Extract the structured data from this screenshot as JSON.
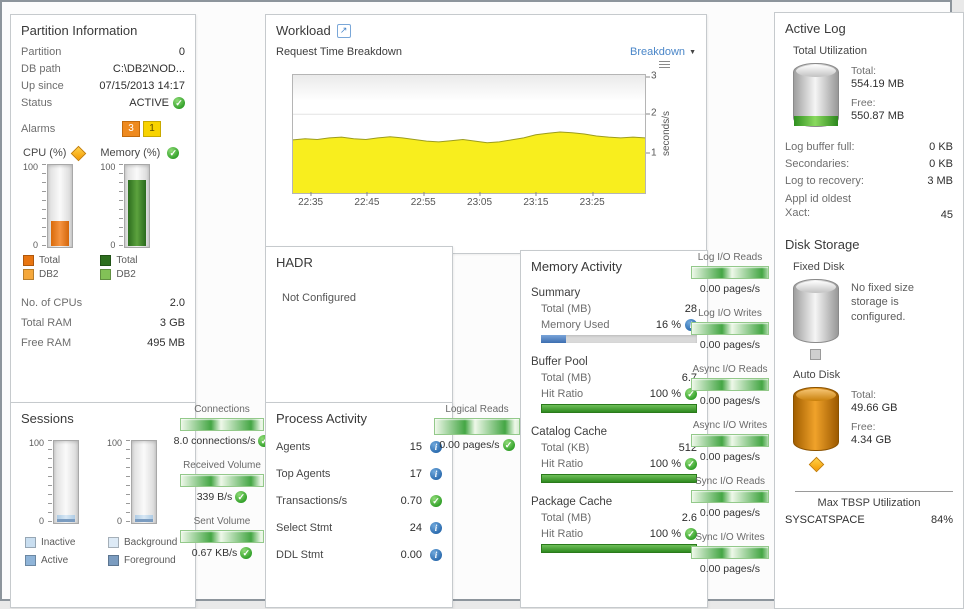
{
  "icons": {
    "ok": "✓",
    "info": "i",
    "caret_down": "▼",
    "external_link": "↗"
  },
  "colors": {
    "link": "#4a86c8",
    "ok_green": "#3aa52f",
    "warn_orange": "#ee8a1f",
    "caution_yellow": "#f8d300",
    "cpu_total": "#e87511",
    "cpu_db2": "#f5a83b",
    "mem_total": "#2d6e1e",
    "mem_db2": "#82c157",
    "sess_inactive": "#c9def0",
    "sess_active": "#8fb4d8",
    "sess_background": "#ddeaf6",
    "sess_foreground": "#7b9cc0",
    "info_blue": "#3273b5",
    "chart_fill": "#f8ee1e"
  },
  "partition": {
    "title": "Partition Information",
    "rows": [
      {
        "label": "Partition",
        "value": "0"
      },
      {
        "label": "DB path",
        "value": "C:\\DB2\\NOD..."
      },
      {
        "label": "Up since",
        "value": "07/15/2013 14:17"
      },
      {
        "label": "Status",
        "value": "ACTIVE"
      }
    ],
    "alarms_label": "Alarms",
    "alarms": [
      {
        "count": "3",
        "severity": "warning"
      },
      {
        "count": "1",
        "severity": "caution"
      }
    ],
    "cpu": {
      "label": "CPU (%)",
      "max": "100",
      "min": "0",
      "fill": "30%",
      "legend": [
        "Total",
        "DB2"
      ]
    },
    "memory": {
      "label": "Memory (%)",
      "max": "100",
      "min": "0",
      "fill": "80%",
      "legend": [
        "Total",
        "DB2"
      ]
    },
    "stats": [
      {
        "label": "No. of CPUs",
        "value": "2.0"
      },
      {
        "label": "Total RAM",
        "value": "3 GB"
      },
      {
        "label": "Free RAM",
        "value": "495 MB"
      }
    ]
  },
  "sessions": {
    "title": "Sessions",
    "gauges": [
      {
        "max": "100",
        "min": "0",
        "fill": "9%"
      },
      {
        "max": "100",
        "min": "0",
        "fill": "8%"
      }
    ],
    "legend": [
      [
        "Inactive",
        "Active"
      ],
      [
        "Background",
        "Foreground"
      ]
    ]
  },
  "flows": {
    "connections": {
      "label": "Connections",
      "value": "8.0 connections/s"
    },
    "received": {
      "label": "Received Volume",
      "value": "339 B/s"
    },
    "sent": {
      "label": "Sent Volume",
      "value": "0.67 KB/s"
    },
    "logical_reads": {
      "label": "Logical Reads",
      "value": "0.00 pages/s"
    }
  },
  "io_flows": [
    {
      "label": "Log I/O Reads",
      "value": "0.00 pages/s"
    },
    {
      "label": "Log I/O Writes",
      "value": "0.00 pages/s"
    },
    {
      "label": "Async I/O Reads",
      "value": "0.00 pages/s"
    },
    {
      "label": "Async I/O Writes",
      "value": "0.00 pages/s"
    },
    {
      "label": "Sync I/O Reads",
      "value": "0.00 pages/s"
    },
    {
      "label": "Sync I/O Writes",
      "value": "0.00 pages/s"
    }
  ],
  "workload": {
    "title": "Workload",
    "subtitle": "Request Time Breakdown",
    "breakdown_label": "Breakdown"
  },
  "chart_data": {
    "type": "area",
    "title": "Request Time Breakdown",
    "ylabel": "seconds/s",
    "ylim": [
      0,
      3
    ],
    "y_ticks": [
      "3",
      "2",
      "1"
    ],
    "x_ticks": [
      "22:35",
      "22:45",
      "22:55",
      "23:05",
      "23:15",
      "23:25"
    ],
    "fill_color": "#f8ee1e",
    "line_color": "#9c9c1e",
    "legend_position": "none",
    "grid": true,
    "series": [
      {
        "name": "Request Time",
        "values": [
          1.35,
          1.38,
          1.36,
          1.4,
          1.42,
          1.38,
          1.36,
          1.4,
          1.43,
          1.4,
          1.36,
          1.32,
          1.3,
          1.33,
          1.36,
          1.32,
          1.28,
          1.3,
          1.35,
          1.4,
          1.48,
          1.52,
          1.55,
          1.53,
          1.5,
          1.45,
          1.42,
          1.4,
          1.42,
          1.4
        ]
      }
    ]
  },
  "hadr": {
    "title": "HADR",
    "message": "Not Configured"
  },
  "process": {
    "title": "Process Activity",
    "rows": [
      {
        "label": "Agents",
        "value": "15",
        "icon": "info"
      },
      {
        "label": "Top Agents",
        "value": "17",
        "icon": "info"
      },
      {
        "label": "Transactions/s",
        "value": "0.70",
        "icon": "ok"
      },
      {
        "label": "Select Stmt",
        "value": "24",
        "icon": "info"
      },
      {
        "label": "DDL Stmt",
        "value": "0.00",
        "icon": "info"
      }
    ]
  },
  "memory_activity": {
    "title": "Memory Activity",
    "summary_title": "Summary",
    "summary_rows": [
      {
        "label": "Total (MB)",
        "value": "28"
      },
      {
        "label": "Memory Used",
        "value": "16 %"
      }
    ],
    "memory_used_pct": "16%",
    "sections": [
      {
        "title": "Buffer Pool",
        "rows": [
          {
            "label": "Total (MB)",
            "value": "6.7"
          },
          {
            "label": "Hit Ratio",
            "value": "100 %"
          }
        ],
        "bar": "100%"
      },
      {
        "title": "Catalog Cache",
        "rows": [
          {
            "label": "Total (KB)",
            "value": "512"
          },
          {
            "label": "Hit Ratio",
            "value": "100 %"
          }
        ],
        "bar": "100%"
      },
      {
        "title": "Package Cache",
        "rows": [
          {
            "label": "Total (MB)",
            "value": "2.6"
          },
          {
            "label": "Hit Ratio",
            "value": "100 %"
          }
        ],
        "bar": "100%"
      }
    ]
  },
  "active_log": {
    "title": "Active Log",
    "subtitle": "Total Utilization",
    "total_label": "Total:",
    "total_value": "554.19 MB",
    "free_label": "Free:",
    "free_value": "550.87 MB",
    "fill": "16%",
    "rows": [
      {
        "label": "Log buffer full:",
        "value": "0 KB"
      },
      {
        "label": "Secondaries:",
        "value": "0 KB"
      },
      {
        "label": "Log to recovery:",
        "value": "3 MB"
      },
      {
        "label": "Appl id oldest Xact:",
        "value": "45"
      }
    ]
  },
  "disk_storage": {
    "title": "Disk Storage",
    "fixed_label": "Fixed Disk",
    "fixed_message": "No fixed size storage is configured.",
    "auto_label": "Auto Disk",
    "auto_total_label": "Total:",
    "auto_total": "49.66 GB",
    "auto_free_label": "Free:",
    "auto_free": "4.34 GB",
    "max_tbsp_title": "Max TBSP Utilization",
    "max_tbsp_name": "SYSCATSPACE",
    "max_tbsp_value": "84%"
  }
}
